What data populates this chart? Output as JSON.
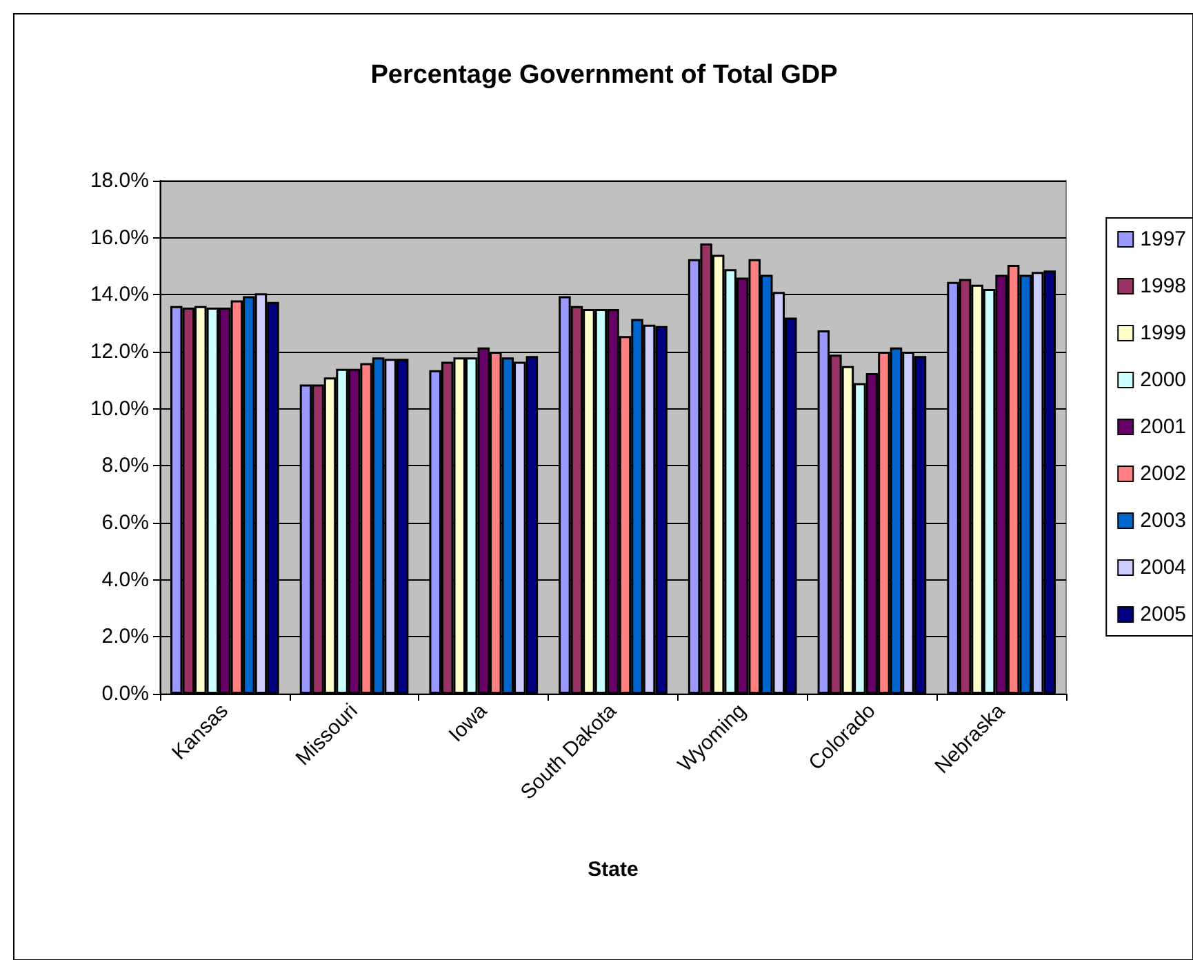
{
  "chart_data": {
    "type": "bar",
    "title": "Percentage Government of Total GDP",
    "xlabel": "State",
    "categories": [
      "Kansas",
      "Missouri",
      "Iowa",
      "South Dakota",
      "Wyoming",
      "Colorado",
      "Nebraska"
    ],
    "series": [
      {
        "name": "1997",
        "color": "#9999ff",
        "values": [
          13.6,
          10.85,
          11.35,
          13.95,
          15.25,
          12.75,
          14.45
        ]
      },
      {
        "name": "1998",
        "color": "#993366",
        "values": [
          13.55,
          10.85,
          11.65,
          13.6,
          15.8,
          11.9,
          14.55
        ]
      },
      {
        "name": "1999",
        "color": "#ffffcc",
        "values": [
          13.6,
          11.1,
          11.8,
          13.5,
          15.4,
          11.5,
          14.35
        ]
      },
      {
        "name": "2000",
        "color": "#ccffff",
        "values": [
          13.55,
          11.4,
          11.8,
          13.5,
          14.9,
          10.9,
          14.2
        ]
      },
      {
        "name": "2001",
        "color": "#660066",
        "values": [
          13.55,
          11.4,
          12.15,
          13.5,
          14.6,
          11.25,
          14.7
        ]
      },
      {
        "name": "2002",
        "color": "#ff8080",
        "values": [
          13.8,
          11.6,
          12.0,
          12.55,
          15.25,
          12.0,
          15.05
        ]
      },
      {
        "name": "2003",
        "color": "#0066cc",
        "values": [
          13.95,
          11.8,
          11.8,
          13.15,
          14.7,
          12.15,
          14.7
        ]
      },
      {
        "name": "2004",
        "color": "#ccccff",
        "values": [
          14.05,
          11.75,
          11.65,
          12.95,
          14.1,
          12.0,
          14.8
        ]
      },
      {
        "name": "2005",
        "color": "#000080",
        "values": [
          13.75,
          11.75,
          11.85,
          12.9,
          13.2,
          11.85,
          14.85
        ]
      }
    ],
    "ylim": [
      0,
      18
    ],
    "yticks": [
      {
        "value": 0,
        "label": "0.0%"
      },
      {
        "value": 2,
        "label": "2.0%"
      },
      {
        "value": 4,
        "label": "4.0%"
      },
      {
        "value": 6,
        "label": "6.0%"
      },
      {
        "value": 8,
        "label": "8.0%"
      },
      {
        "value": 10,
        "label": "10.0%"
      },
      {
        "value": 12,
        "label": "12.0%"
      },
      {
        "value": 14,
        "label": "14.0%"
      },
      {
        "value": 16,
        "label": "16.0%"
      },
      {
        "value": 18,
        "label": "18.0%"
      }
    ],
    "grid": "y",
    "legend": "right"
  }
}
